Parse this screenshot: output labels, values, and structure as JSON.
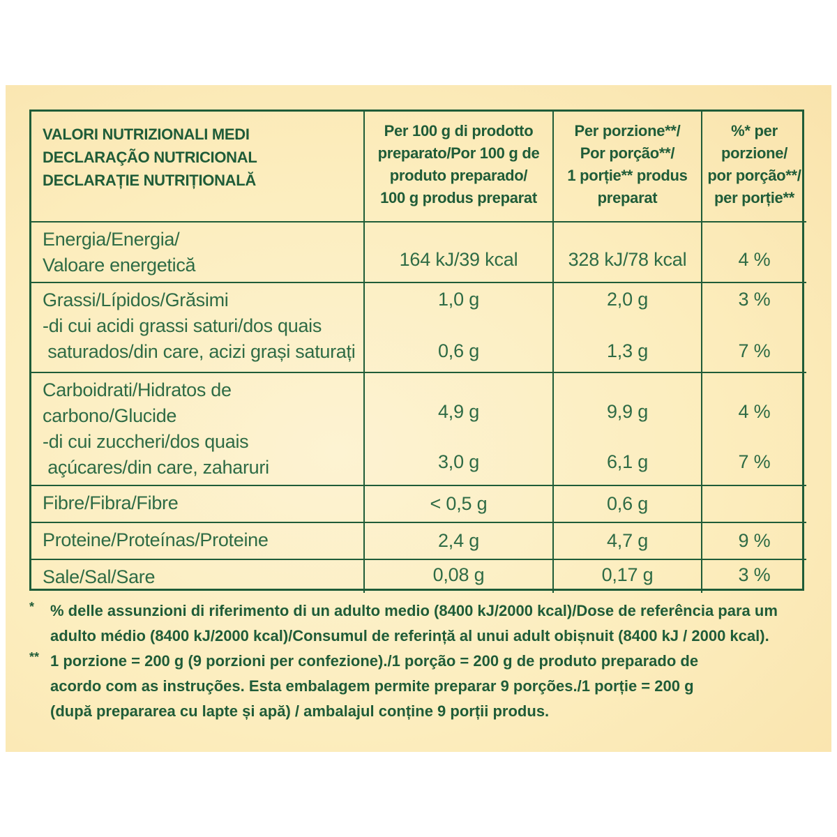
{
  "table": {
    "header": {
      "col1": [
        "VALORI NUTRIZIONALI MEDI",
        "DECLARAÇÃO NUTRICIONAL",
        "DECLARAȚIE NUTRIȚIONALĂ"
      ],
      "col2": [
        "Per 100 g di prodotto",
        "preparato/Por 100 g de",
        "produto preparado/",
        "100 g produs preparat"
      ],
      "col3": [
        "Per porzione**/",
        "Por porção**/",
        "1 porție** produs",
        "preparat"
      ],
      "col4": [
        "%* per",
        "porzione/",
        "por porção**/",
        "per porție**"
      ]
    },
    "rows": [
      {
        "label": [
          "Energia/Energia/",
          "Valoare energetică"
        ],
        "per100": [
          "164 kJ/39 kcal"
        ],
        "perPortion": [
          "328 kJ/78 kcal"
        ],
        "percent": [
          "4 %"
        ]
      },
      {
        "label": [
          "Grassi/Lípidos/Grăsimi",
          "-di cui acidi grassi saturi/dos quais",
          " saturados/din care, acizi grași saturați"
        ],
        "per100": [
          "1,0 g",
          "0,6 g"
        ],
        "perPortion": [
          "2,0 g",
          "1,3 g"
        ],
        "percent": [
          "3 %",
          "7 %"
        ]
      },
      {
        "label": [
          "Carboidrati/Hidratos de",
          "carbono/Glucide",
          "-di cui zuccheri/dos quais",
          " açúcares/din care, zaharuri"
        ],
        "per100": [
          "4,9 g",
          "3,0 g"
        ],
        "perPortion": [
          "9,9 g",
          "6,1 g"
        ],
        "percent": [
          "4 %",
          "7 %"
        ]
      },
      {
        "label": [
          "Fibre/Fibra/Fibre"
        ],
        "per100": [
          "< 0,5 g"
        ],
        "perPortion": [
          "0,6 g"
        ],
        "percent": [
          ""
        ]
      },
      {
        "label": [
          "Proteine/Proteínas/Proteine"
        ],
        "per100": [
          "2,4 g"
        ],
        "perPortion": [
          "4,7 g"
        ],
        "percent": [
          "9 %"
        ]
      },
      {
        "label": [
          "Sale/Sal/Sare"
        ],
        "per100": [
          "0,08 g"
        ],
        "perPortion": [
          "0,17 g"
        ],
        "percent": [
          "3 %"
        ]
      }
    ]
  },
  "footnotes": [
    {
      "mark": "*",
      "lines": [
        "% delle assunzioni di riferimento di un adulto medio (8400 kJ/2000 kcal)/Dose de referência para um",
        "adulto médio (8400 kJ/2000 kcal)/Consumul de referință al unui adult obișnuit (8400 kJ / 2000 kcal)."
      ]
    },
    {
      "mark": "**",
      "lines": [
        "1 porzione = 200 g (9 porzioni per confezione)./1 porção = 200 g de produto preparado de",
        "acordo com as instruções. Esta embalagem permite preparar 9 porções./1 porție = 200 g",
        "(după prepararea cu lapte și apă) / ambalajul conține 9 porții produs."
      ]
    }
  ],
  "colors": {
    "ink": "#1f5c38",
    "text": "#2e6b45",
    "panel": "#fcedbd"
  }
}
